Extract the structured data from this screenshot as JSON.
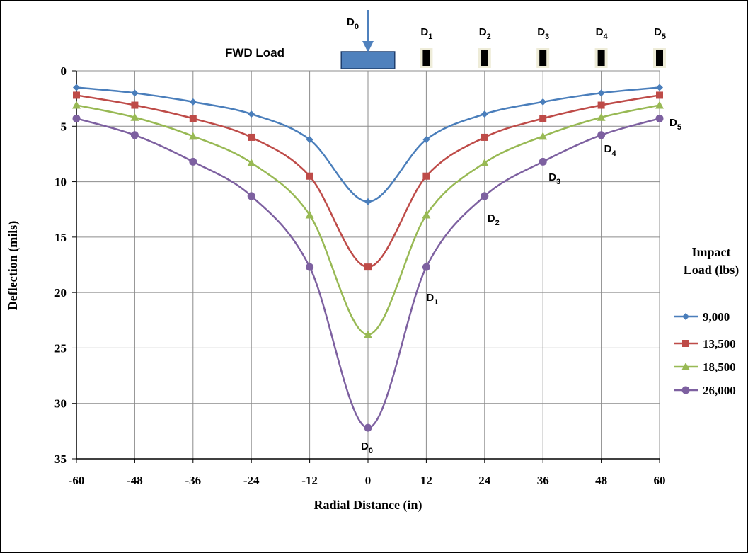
{
  "chart_data": {
    "type": "line",
    "xlabel": "Radial Distance (in)",
    "ylabel": "Deflection (mils)",
    "x": [
      -60,
      -48,
      -36,
      -24,
      -12,
      0,
      12,
      24,
      36,
      48,
      60
    ],
    "xlim": [
      -60,
      60
    ],
    "xticks": [
      -60,
      -48,
      -36,
      -24,
      -12,
      0,
      12,
      24,
      36,
      48,
      60
    ],
    "ylim": [
      0,
      35
    ],
    "yticks": [
      0,
      5,
      10,
      15,
      20,
      25,
      30,
      35
    ],
    "y_reversed": true,
    "grid": true,
    "smooth": true,
    "legend_title": [
      "Impact",
      "Load (lbs)"
    ],
    "legend_position": "right",
    "series": [
      {
        "name": "9,000",
        "color": "#4a7ebb",
        "marker": "diamond",
        "values": [
          1.5,
          2.0,
          2.8,
          3.9,
          6.2,
          11.8,
          6.2,
          3.9,
          2.8,
          2.0,
          1.5
        ]
      },
      {
        "name": "13,500",
        "color": "#be4b48",
        "marker": "square",
        "values": [
          2.2,
          3.1,
          4.3,
          6.0,
          9.5,
          17.7,
          9.5,
          6.0,
          4.3,
          3.1,
          2.2
        ]
      },
      {
        "name": "18,500",
        "color": "#98b954",
        "marker": "triangle",
        "values": [
          3.1,
          4.2,
          5.9,
          8.3,
          13.0,
          23.8,
          13.0,
          8.3,
          5.9,
          4.2,
          3.1
        ]
      },
      {
        "name": "26,000",
        "color": "#7d60a0",
        "marker": "circle",
        "values": [
          4.3,
          5.8,
          8.2,
          11.3,
          17.7,
          32.2,
          17.7,
          11.3,
          8.2,
          5.8,
          4.3
        ]
      }
    ],
    "load_label": "FWD Load",
    "sensor_labels": [
      {
        "text": "D",
        "sub": "0"
      },
      {
        "text": "D",
        "sub": "1"
      },
      {
        "text": "D",
        "sub": "2"
      },
      {
        "text": "D",
        "sub": "3"
      },
      {
        "text": "D",
        "sub": "4"
      },
      {
        "text": "D",
        "sub": "5"
      }
    ],
    "curve_labels": [
      {
        "text": "D",
        "sub": "0"
      },
      {
        "text": "D",
        "sub": "1"
      },
      {
        "text": "D",
        "sub": "2"
      },
      {
        "text": "D",
        "sub": "3"
      },
      {
        "text": "D",
        "sub": "4"
      },
      {
        "text": "D",
        "sub": "5"
      }
    ]
  }
}
